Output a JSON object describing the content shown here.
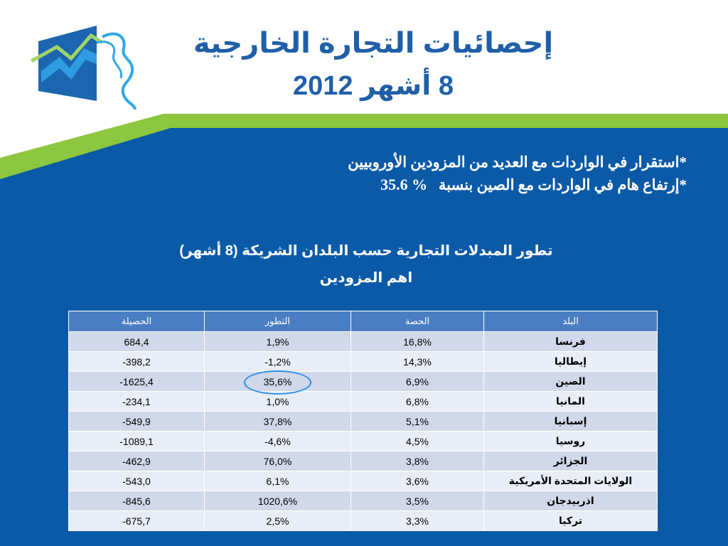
{
  "header": {
    "title_line1": "إحصائيات التجارة الخارجية",
    "title_line2": "8 أشهر 2012"
  },
  "bullets": [
    {
      "text": "*استقرار في الواردات مع العديد من المزودين الأوروبيين"
    },
    {
      "text": "*إرتفاع  هام في الواردات مع الصين بنسبة",
      "pct": "35.6 %"
    }
  ],
  "section": {
    "title": "تطور المبدلات التجارية  حسب البلدان الشريكة (8 أشهر)",
    "subtitle": "اهم المزودين"
  },
  "table": {
    "headers": {
      "balance": "الحصيلة",
      "growth": "التطور",
      "share": "الحصة",
      "country": "البلد"
    },
    "rows": [
      {
        "balance": "684,4",
        "growth": "1,9%",
        "share": "16,8%",
        "country": "فرنسا"
      },
      {
        "balance": "-398,2",
        "growth": "-1,2%",
        "share": "14,3%",
        "country": "إيطاليا"
      },
      {
        "balance": "-1625,4",
        "growth": "35,6%",
        "share": "6,9%",
        "country": "الصين"
      },
      {
        "balance": "-234,1",
        "growth": "1,0%",
        "share": "6,8%",
        "country": "المانيا"
      },
      {
        "balance": "-549,9",
        "growth": "37,8%",
        "share": "5,1%",
        "country": "إسبانيا"
      },
      {
        "balance": "-1089,1",
        "growth": "-4,6%",
        "share": "4,5%",
        "country": "روسيا"
      },
      {
        "balance": "-462,9",
        "growth": "76,0%",
        "share": "3,8%",
        "country": "الجزائر"
      },
      {
        "balance": "-543,0",
        "growth": "6,1%",
        "share": "3,6%",
        "country": "الولايات المتحدة الأمريكية"
      },
      {
        "balance": "-845,6",
        "growth": "1020,6%",
        "share": "3,5%",
        "country": "اذربيدجان"
      },
      {
        "balance": "-675,7",
        "growth": "2,5%",
        "share": "3,3%",
        "country": "تركيا"
      }
    ]
  },
  "colors": {
    "background_blue": "#0b5aa8",
    "accent_green": "#8dc63f",
    "title_blue": "#1f5fa8",
    "header_cell": "#4a7ec2",
    "row_odd": "#d0d8ea",
    "row_even": "#e9edf5",
    "highlight_ring": "#2c8fe6"
  }
}
